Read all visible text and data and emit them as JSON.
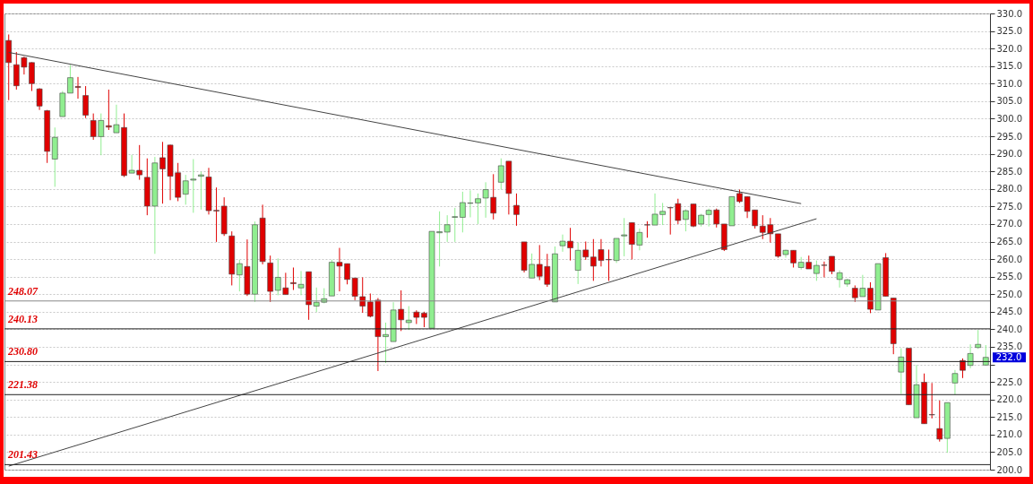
{
  "chart_data": {
    "type": "candlestick",
    "categories": [
      null,
      null,
      null,
      null,
      null,
      null,
      null,
      null,
      null,
      null,
      null,
      null,
      null,
      null,
      null,
      null,
      null,
      null,
      null,
      null,
      null,
      null,
      null,
      null,
      null,
      null,
      null,
      null,
      null,
      null,
      null,
      null,
      null,
      null,
      null,
      null,
      null,
      null,
      null,
      null,
      null,
      null,
      null,
      null,
      null,
      null,
      null,
      null,
      null,
      null,
      null,
      null,
      null,
      null,
      null,
      null,
      null,
      null,
      null,
      null,
      null,
      null,
      null,
      null,
      null,
      null,
      null,
      null,
      null,
      null,
      null,
      null,
      null,
      null,
      null,
      null,
      null,
      null,
      null,
      null,
      null,
      null,
      null,
      null,
      null,
      null,
      null,
      null,
      null,
      null,
      null,
      null,
      null,
      null,
      null,
      null,
      null,
      null,
      null,
      null,
      null,
      null,
      null,
      null,
      null,
      null,
      null,
      null,
      null,
      null,
      null,
      null,
      null,
      null,
      null,
      null,
      null,
      null,
      null,
      null,
      null,
      null,
      null,
      null,
      null,
      null,
      null,
      null
    ],
    "ohlc": [
      [
        322.3,
        324.0,
        305.3,
        316.0
      ],
      [
        315.4,
        319.0,
        308.3,
        309.4
      ],
      [
        317.4,
        317.7,
        312.6,
        314.7
      ],
      [
        316.0,
        316.1,
        307.9,
        310.0
      ],
      [
        308.5,
        308.7,
        302.5,
        303.6
      ],
      [
        302.3,
        302.5,
        287.4,
        290.7
      ],
      [
        288.5,
        297.5,
        280.6,
        294.7
      ],
      [
        300.6,
        307.9,
        300.6,
        307.3
      ],
      [
        307.3,
        315.3,
        307.3,
        311.7
      ],
      [
        309.2,
        311.9,
        305.7,
        308.9
      ],
      [
        306.6,
        309.3,
        300.2,
        301.0
      ],
      [
        299.5,
        301.5,
        294.0,
        294.9
      ],
      [
        294.9,
        301.5,
        289.6,
        299.5
      ],
      [
        298.0,
        308.3,
        296.8,
        297.6
      ],
      [
        296.0,
        304.0,
        296.0,
        298.3
      ],
      [
        297.5,
        301.5,
        283.4,
        283.8
      ],
      [
        284.5,
        289.7,
        284.5,
        285.3
      ],
      [
        285.3,
        292.5,
        282.6,
        284.0
      ],
      [
        283.3,
        288.7,
        272.5,
        275.1
      ],
      [
        275.1,
        289.1,
        261.5,
        287.4
      ],
      [
        288.9,
        293.4,
        275.8,
        285.7
      ],
      [
        292.5,
        292.6,
        276.8,
        283.6
      ],
      [
        284.6,
        287.4,
        276.5,
        277.6
      ],
      [
        278.5,
        284.0,
        275.5,
        282.3
      ],
      [
        282.5,
        288.5,
        273.2,
        282.8
      ],
      [
        283.6,
        284.9,
        274.1,
        284.0
      ],
      [
        283.4,
        286.0,
        272.7,
        273.8
      ],
      [
        273.9,
        280.4,
        264.9,
        273.7
      ],
      [
        275.1,
        277.6,
        266.6,
        267.2
      ],
      [
        266.6,
        267.9,
        252.5,
        255.7
      ],
      [
        255.5,
        259.8,
        250.8,
        258.7
      ],
      [
        257.9,
        265.6,
        249.5,
        250.0
      ],
      [
        250.0,
        270.7,
        247.8,
        269.8
      ],
      [
        271.7,
        275.5,
        258.5,
        259.3
      ],
      [
        258.9,
        261.0,
        247.8,
        250.8
      ],
      [
        251.1,
        260.2,
        249.7,
        254.8
      ],
      [
        251.8,
        256.1,
        249.9,
        249.9
      ],
      [
        253.3,
        257.6,
        251.2,
        253.0
      ],
      [
        251.8,
        256.6,
        249.7,
        252.8
      ],
      [
        256.4,
        256.4,
        242.7,
        247.0
      ],
      [
        246.6,
        251.9,
        244.9,
        247.7
      ],
      [
        247.7,
        251.7,
        247.4,
        248.7
      ],
      [
        249.5,
        259.8,
        249.5,
        259.1
      ],
      [
        259.1,
        263.2,
        250.8,
        258.0
      ],
      [
        258.7,
        258.7,
        252.8,
        254.2
      ],
      [
        254.6,
        254.6,
        248.3,
        249.4
      ],
      [
        249.3,
        254.8,
        244.7,
        246.6
      ],
      [
        247.8,
        250.2,
        243.4,
        243.7
      ],
      [
        248.3,
        248.9,
        228.1,
        237.9
      ],
      [
        237.9,
        241.9,
        230.4,
        238.5
      ],
      [
        236.5,
        247.7,
        236.5,
        245.5
      ],
      [
        245.7,
        251.1,
        239.5,
        242.7
      ],
      [
        241.9,
        246.6,
        239.8,
        242.6
      ],
      [
        244.9,
        245.4,
        241.5,
        243.4
      ],
      [
        244.6,
        245.0,
        240.6,
        243.4
      ],
      [
        240.3,
        267.9,
        240.3,
        267.9
      ],
      [
        267.5,
        273.6,
        257.9,
        267.8
      ],
      [
        267.7,
        272.5,
        264.9,
        269.8
      ],
      [
        271.9,
        274.6,
        264.9,
        272.1
      ],
      [
        271.9,
        279.2,
        267.6,
        276.1
      ],
      [
        275.9,
        279.6,
        271.9,
        276.0
      ],
      [
        276.0,
        278.7,
        270.0,
        277.2
      ],
      [
        277.4,
        281.9,
        271.8,
        279.8
      ],
      [
        277.6,
        284.2,
        271.3,
        273.1
      ],
      [
        281.9,
        288.7,
        279.8,
        286.6
      ],
      [
        287.9,
        287.9,
        272.7,
        278.7
      ],
      [
        275.3,
        278.7,
        269.5,
        272.7
      ],
      [
        264.9,
        264.9,
        256.2,
        256.8
      ],
      [
        254.6,
        261.6,
        254.6,
        258.5
      ],
      [
        258.5,
        264.0,
        254.0,
        255.1
      ],
      [
        257.9,
        261.5,
        252.1,
        252.8
      ],
      [
        247.8,
        263.6,
        247.8,
        261.5
      ],
      [
        263.8,
        267.0,
        262.1,
        265.1
      ],
      [
        265.1,
        268.9,
        259.6,
        263.2
      ],
      [
        256.8,
        264.7,
        252.9,
        262.5
      ],
      [
        262.6,
        265.0,
        259.8,
        260.6
      ],
      [
        260.6,
        265.7,
        253.8,
        258.0
      ],
      [
        262.7,
        265.7,
        257.9,
        259.6
      ],
      [
        259.9,
        262.7,
        253.8,
        259.8
      ],
      [
        259.6,
        265.9,
        258.9,
        265.9
      ],
      [
        266.6,
        271.7,
        260.8,
        266.9
      ],
      [
        270.4,
        270.4,
        259.9,
        264.2
      ],
      [
        264.0,
        268.7,
        262.5,
        267.6
      ],
      [
        269.8,
        270.8,
        266.1,
        269.7
      ],
      [
        269.7,
        278.7,
        269.7,
        272.8
      ],
      [
        272.7,
        276.0,
        269.7,
        273.6
      ],
      [
        274.7,
        274.7,
        267.0,
        274.6
      ],
      [
        275.8,
        277.2,
        270.0,
        271.0
      ],
      [
        271.3,
        274.2,
        267.9,
        273.8
      ],
      [
        275.7,
        275.7,
        269.1,
        269.4
      ],
      [
        270.0,
        272.9,
        269.3,
        272.5
      ],
      [
        272.7,
        274.4,
        269.3,
        273.9
      ],
      [
        274.0,
        274.4,
        269.0,
        270.0
      ],
      [
        270.0,
        270.0,
        262.3,
        262.7
      ],
      [
        269.5,
        277.8,
        269.5,
        277.8
      ],
      [
        278.7,
        279.8,
        276.0,
        276.4
      ],
      [
        277.8,
        277.8,
        271.7,
        273.6
      ],
      [
        274.0,
        274.0,
        268.7,
        269.5
      ],
      [
        269.4,
        272.5,
        265.7,
        267.6
      ],
      [
        269.8,
        271.7,
        264.7,
        267.2
      ],
      [
        267.2,
        267.2,
        260.4,
        260.8
      ],
      [
        261.3,
        262.7,
        260.4,
        262.5
      ],
      [
        262.5,
        262.5,
        257.6,
        258.9
      ],
      [
        257.6,
        260.6,
        257.0,
        259.1
      ],
      [
        259.1,
        261.0,
        257.2,
        257.2
      ],
      [
        255.9,
        259.6,
        253.8,
        258.2
      ],
      [
        258.3,
        259.3,
        254.8,
        258.2
      ],
      [
        260.8,
        260.8,
        255.7,
        256.5
      ],
      [
        254.2,
        256.8,
        251.9,
        256.1
      ],
      [
        252.9,
        254.4,
        252.1,
        254.1
      ],
      [
        251.7,
        252.5,
        247.8,
        249.0
      ],
      [
        249.3,
        255.5,
        249.3,
        251.7
      ],
      [
        251.7,
        253.4,
        244.6,
        245.7
      ],
      [
        245.5,
        258.7,
        245.5,
        258.7
      ],
      [
        260.4,
        261.7,
        249.4,
        249.4
      ],
      [
        248.9,
        248.9,
        232.9,
        235.9
      ],
      [
        227.8,
        234.6,
        221.6,
        232.1
      ],
      [
        234.6,
        234.6,
        218.5,
        218.5
      ],
      [
        214.8,
        229.8,
        214.8,
        224.2
      ],
      [
        224.9,
        227.4,
        213.1,
        213.1
      ],
      [
        215.7,
        224.7,
        214.6,
        215.6
      ],
      [
        211.7,
        219.7,
        208.0,
        208.7
      ],
      [
        208.9,
        219.1,
        204.8,
        219.1
      ],
      [
        224.7,
        228.4,
        221.4,
        227.4
      ],
      [
        231.1,
        231.7,
        226.1,
        228.3
      ],
      [
        229.7,
        235.7,
        228.9,
        233.1
      ],
      [
        234.8,
        239.8,
        234.4,
        235.7
      ],
      [
        229.8,
        235.5,
        229.8,
        232.0
      ]
    ],
    "colors": [
      "#e00000",
      "#e00000",
      "#e00000",
      "#e00000",
      "#e00000",
      "#e00000",
      "#90ee90",
      "#90ee90",
      "#90ee90",
      "#e00000",
      "#e00000",
      "#e00000",
      "#90ee90",
      "#e00000",
      "#90ee90",
      "#e00000",
      "#90ee90",
      "#e00000",
      "#e00000",
      "#90ee90",
      "#e00000",
      "#e00000",
      "#e00000",
      "#90ee90",
      "#90ee90",
      "#90ee90",
      "#e00000",
      "#e00000",
      "#e00000",
      "#e00000",
      "#90ee90",
      "#e00000",
      "#90ee90",
      "#e00000",
      "#e00000",
      "#90ee90",
      "#e00000",
      "#e00000",
      "#90ee90",
      "#e00000",
      "#90ee90",
      "#90ee90",
      "#90ee90",
      "#e00000",
      "#e00000",
      "#e00000",
      "#e00000",
      "#e00000",
      "#e00000",
      "#90ee90",
      "#90ee90",
      "#e00000",
      "#90ee90",
      "#e00000",
      "#e00000",
      "#90ee90",
      "#90ee90",
      "#90ee90",
      "#90ee90",
      "#90ee90",
      "#90ee90",
      "#90ee90",
      "#90ee90",
      "#e00000",
      "#90ee90",
      "#e00000",
      "#e00000",
      "#e00000",
      "#90ee90",
      "#e00000",
      "#e00000",
      "#90ee90",
      "#90ee90",
      "#e00000",
      "#90ee90",
      "#e00000",
      "#e00000",
      "#e00000",
      "#e00000",
      "#90ee90",
      "#90ee90",
      "#e00000",
      "#90ee90",
      "#e00000",
      "#90ee90",
      "#90ee90",
      "#e00000",
      "#e00000",
      "#90ee90",
      "#e00000",
      "#90ee90",
      "#90ee90",
      "#e00000",
      "#e00000",
      "#90ee90",
      "#e00000",
      "#e00000",
      "#e00000",
      "#e00000",
      "#e00000",
      "#e00000",
      "#90ee90",
      "#e00000",
      "#90ee90",
      "#e00000",
      "#90ee90",
      "#e00000",
      "#e00000",
      "#90ee90",
      "#90ee90",
      "#e00000",
      "#90ee90",
      "#e00000",
      "#90ee90",
      "#e00000",
      "#e00000",
      "#90ee90",
      "#e00000",
      "#90ee90",
      "#e00000",
      "#e00000",
      "#e00000",
      "#90ee90",
      "#90ee90",
      "#e00000",
      "#90ee90",
      "#90ee90",
      "#90ee90"
    ],
    "series": [
      {
        "type": "line",
        "color": "#444444",
        "values": [
          318.9,
          null,
          null,
          null,
          null,
          null,
          null,
          null,
          null,
          null,
          null,
          null,
          null,
          null,
          null,
          null,
          null,
          null,
          null,
          null,
          null,
          null,
          null,
          null,
          null,
          null,
          null,
          null,
          null,
          null,
          null,
          null,
          null,
          null,
          null,
          null,
          null,
          null,
          null,
          null,
          null,
          null,
          null,
          null,
          null,
          null,
          null,
          null,
          null,
          null,
          null,
          null,
          null,
          null,
          null,
          null,
          null,
          null,
          null,
          null,
          null,
          null,
          null,
          null,
          null,
          null,
          null,
          null,
          null,
          null,
          null,
          null,
          null,
          null,
          null,
          null,
          null,
          null,
          null,
          null,
          null,
          null,
          null,
          null,
          null,
          null,
          null,
          null,
          null,
          null,
          null,
          null,
          null,
          null,
          null,
          null,
          null,
          null,
          null,
          null,
          null,
          null,
          null,
          275.8,
          null,
          null,
          null,
          null,
          null,
          null,
          null,
          null,
          null,
          null,
          null,
          null,
          null,
          null,
          null,
          null,
          null,
          null,
          null,
          null,
          null,
          null,
          null,
          null
        ]
      },
      {
        "type": "line",
        "color": "#444444",
        "values": [
          201.0,
          null,
          null,
          null,
          null,
          null,
          null,
          null,
          null,
          null,
          null,
          null,
          null,
          null,
          null,
          null,
          null,
          null,
          null,
          null,
          null,
          null,
          null,
          null,
          null,
          null,
          null,
          null,
          null,
          null,
          null,
          null,
          null,
          null,
          null,
          null,
          null,
          null,
          null,
          null,
          null,
          null,
          null,
          null,
          null,
          null,
          null,
          null,
          null,
          null,
          null,
          null,
          null,
          null,
          null,
          null,
          null,
          null,
          null,
          null,
          null,
          null,
          null,
          null,
          null,
          null,
          null,
          null,
          null,
          null,
          null,
          null,
          null,
          null,
          null,
          null,
          null,
          null,
          null,
          null,
          null,
          null,
          null,
          null,
          null,
          null,
          null,
          null,
          null,
          null,
          null,
          null,
          null,
          null,
          null,
          null,
          null,
          null,
          null,
          null,
          null,
          null,
          null,
          null,
          null,
          271.5,
          null,
          null,
          null,
          null,
          null,
          null,
          null,
          null,
          null,
          null,
          null,
          null,
          null,
          null,
          null,
          null,
          null,
          null,
          null,
          null,
          null,
          null
        ]
      }
    ],
    "ylim": [
      200,
      330
    ],
    "yticks": [
      {
        "value": 200,
        "label": "200.0"
      },
      {
        "value": 205,
        "label": "205.0"
      },
      {
        "value": 210,
        "label": "210.0"
      },
      {
        "value": 215,
        "label": "215.0"
      },
      {
        "value": 220,
        "label": "220.0"
      },
      {
        "value": 225,
        "label": "225.0"
      },
      {
        "value": 230,
        "label": null
      },
      {
        "value": 235,
        "label": "235.0"
      },
      {
        "value": 240,
        "label": "240.0"
      },
      {
        "value": 245,
        "label": "245.0"
      },
      {
        "value": 250,
        "label": "250.0"
      },
      {
        "value": 255,
        "label": "255.0"
      },
      {
        "value": 260,
        "label": "260.0"
      },
      {
        "value": 265,
        "label": "265.0"
      },
      {
        "value": 270,
        "label": "270.0"
      },
      {
        "value": 275,
        "label": "275.0"
      },
      {
        "value": 280,
        "label": "280.0"
      },
      {
        "value": 285,
        "label": "285.0"
      },
      {
        "value": 290,
        "label": "290.0"
      },
      {
        "value": 295,
        "label": "295.0"
      },
      {
        "value": 300,
        "label": "300.0"
      },
      {
        "value": 305,
        "label": "305.0"
      },
      {
        "value": 310,
        "label": "310.0"
      },
      {
        "value": 315,
        "label": "315.0"
      },
      {
        "value": 320,
        "label": "320.0"
      },
      {
        "value": 325,
        "label": "325.0"
      },
      {
        "value": 330,
        "label": "330.0"
      }
    ],
    "ref_lines": [
      {
        "axis": "y",
        "value": 248.07,
        "label": "248.07",
        "color": "#888888"
      },
      {
        "axis": "y",
        "value": 240.13,
        "label": "240.13",
        "color": "#222222"
      },
      {
        "axis": "y",
        "value": 230.8,
        "label": "230.80",
        "color": "#222222"
      },
      {
        "axis": "y",
        "value": 221.38,
        "label": "221.38",
        "color": "#222222"
      },
      {
        "axis": "y",
        "value": 201.43,
        "label": "201.43",
        "color": "#222222"
      }
    ],
    "annotations": [
      "232.0"
    ],
    "grid": "y"
  }
}
